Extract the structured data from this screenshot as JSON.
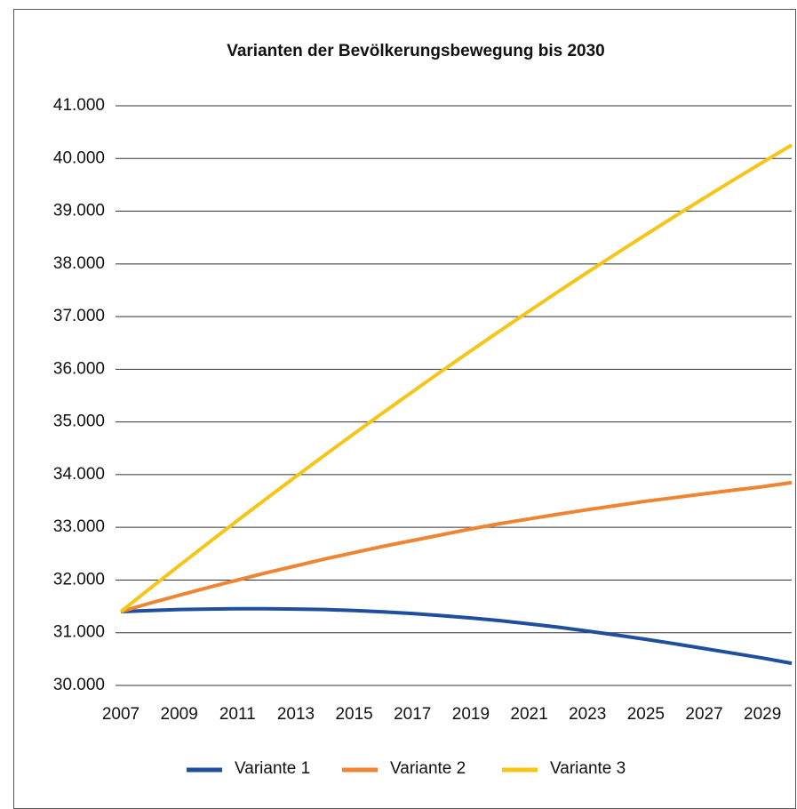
{
  "chart_data": {
    "type": "line",
    "title": "Varianten der Bevölkerungsbewegung bis 2030",
    "categories": [
      "2007",
      null,
      "2009",
      null,
      "2011",
      null,
      "2013",
      null,
      "2015",
      null,
      "2017",
      null,
      "2019",
      null,
      "2021",
      null,
      "2023",
      null,
      "2025",
      null,
      "2027",
      null,
      "2029",
      null
    ],
    "series": [
      {
        "name": "Variante 1",
        "color": "#1f4e9c",
        "values": [
          31400,
          31420,
          31440,
          31450,
          31455,
          31455,
          31450,
          31440,
          31420,
          31395,
          31365,
          31325,
          31280,
          31230,
          31170,
          31105,
          31030,
          30955,
          30875,
          30790,
          30700,
          30610,
          30520,
          30420
        ]
      },
      {
        "name": "Variante 2",
        "color": "#ee8533",
        "values": [
          31400,
          31560,
          31710,
          31860,
          32000,
          32140,
          32270,
          32400,
          32520,
          32640,
          32750,
          32860,
          32970,
          33070,
          33160,
          33250,
          33335,
          33415,
          33495,
          33565,
          33635,
          33705,
          33770,
          33850
        ]
      },
      {
        "name": "Variante 3",
        "color": "#f5c518",
        "values": [
          31400,
          31840,
          32275,
          32705,
          33130,
          33550,
          33965,
          34375,
          34780,
          35180,
          35575,
          35965,
          36350,
          36730,
          37105,
          37475,
          37840,
          38200,
          38555,
          38905,
          39250,
          39590,
          39925,
          40255
        ]
      }
    ],
    "ylim": [
      30000,
      41000
    ],
    "yticks": [
      {
        "value": 30000,
        "label": "30.000"
      },
      {
        "value": 31000,
        "label": "31.000"
      },
      {
        "value": 32000,
        "label": "32.000"
      },
      {
        "value": 33000,
        "label": "33.000"
      },
      {
        "value": 34000,
        "label": "34.000"
      },
      {
        "value": 35000,
        "label": "35.000"
      },
      {
        "value": 36000,
        "label": "36.000"
      },
      {
        "value": 37000,
        "label": "37.000"
      },
      {
        "value": 38000,
        "label": "38.000"
      },
      {
        "value": 39000,
        "label": "39.000"
      },
      {
        "value": 40000,
        "label": "40.000"
      },
      {
        "value": 41000,
        "label": "41.000"
      }
    ],
    "grid": true,
    "legend": "bottom"
  }
}
